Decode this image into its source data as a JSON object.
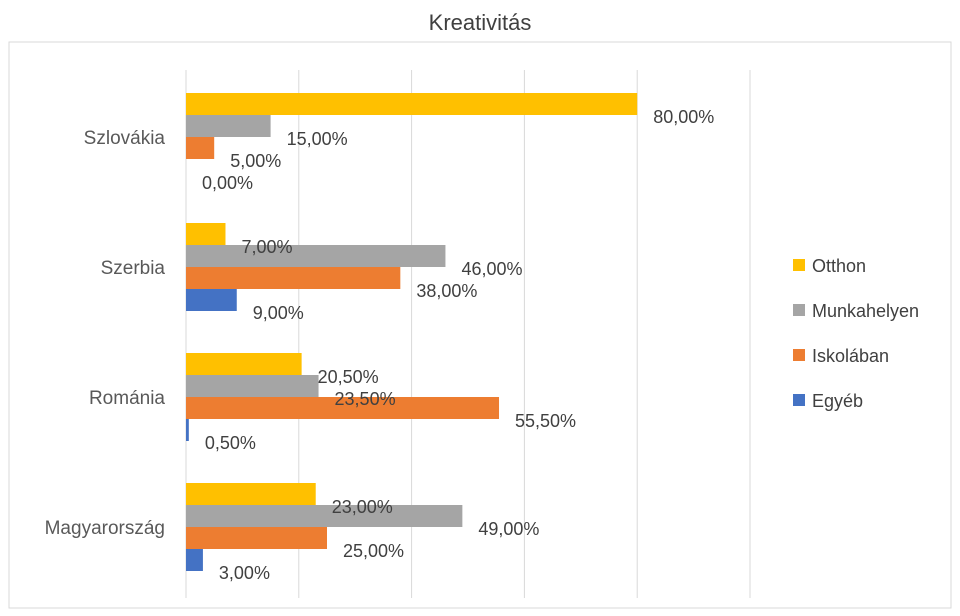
{
  "chart_data": {
    "type": "bar",
    "orientation": "horizontal",
    "title": "Kreativitás",
    "xlabel": "",
    "ylabel": "",
    "xlim": [
      0,
      100
    ],
    "grid": true,
    "legend_position": "right",
    "categories": [
      "Szlovákia",
      "Szerbia",
      "Románia",
      "Magyarország"
    ],
    "series": [
      {
        "name": "Otthon",
        "color": "#FFC000",
        "values": [
          80,
          7,
          20.5,
          23
        ],
        "labels": [
          "80,00%",
          "7,00%",
          "20,50%",
          "23,00%"
        ]
      },
      {
        "name": "Munkahelyen",
        "color": "#A5A5A5",
        "values": [
          15,
          46,
          23.5,
          49
        ],
        "labels": [
          "15,00%",
          "46,00%",
          "23,50%",
          "49,00%"
        ]
      },
      {
        "name": "Iskolában",
        "color": "#ED7D31",
        "values": [
          5,
          38,
          55.5,
          25
        ],
        "labels": [
          "5,00%",
          "38,00%",
          "55,50%",
          "25,00%"
        ]
      },
      {
        "name": "Egyéb",
        "color": "#4472C4",
        "values": [
          0,
          9,
          0.5,
          3
        ],
        "labels": [
          "0,00%",
          "9,00%",
          "0,50%",
          "3,00%"
        ]
      }
    ]
  }
}
